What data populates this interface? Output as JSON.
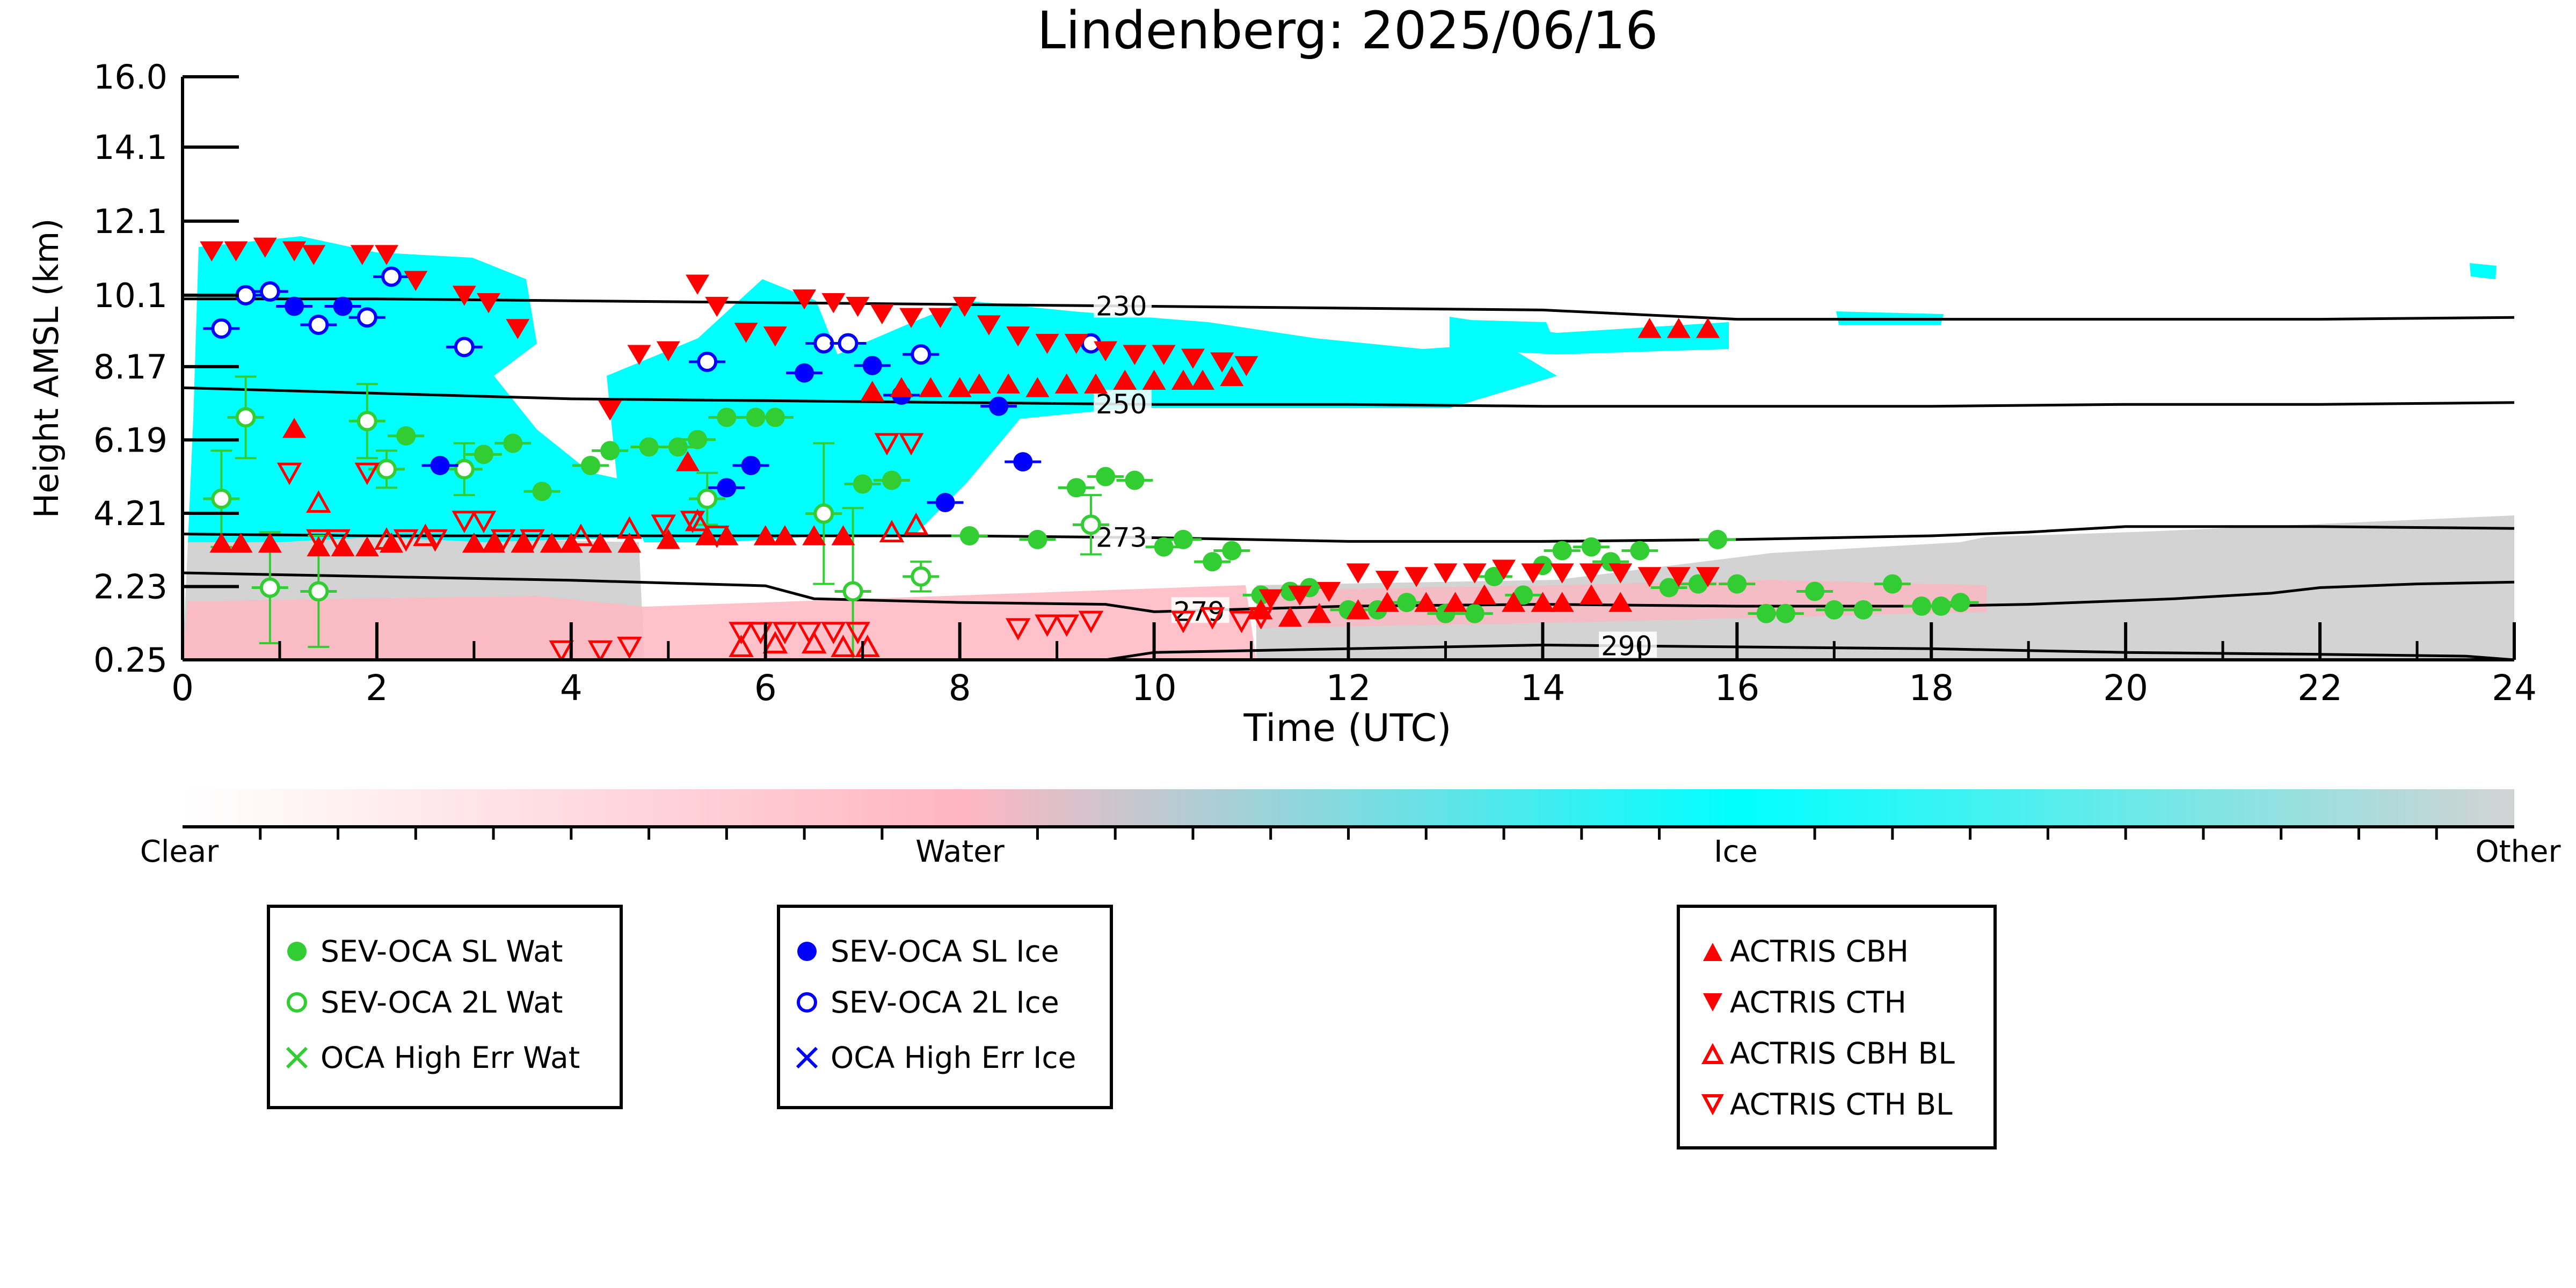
{
  "chart_data": {
    "type": "scatter",
    "title": "Lindenberg: 2025/06/16",
    "xlabel": "Time (UTC)",
    "ylabel": "Height AMSL (km)",
    "xlim": [
      0,
      24
    ],
    "ylim": [
      0.25,
      16.0
    ],
    "x_ticks": [
      "0",
      "2",
      "4",
      "6",
      "8",
      "10",
      "12",
      "14",
      "16",
      "18",
      "20",
      "22",
      "24"
    ],
    "y_ticks": [
      "0.25",
      "2.23",
      "4.21",
      "6.19",
      "8.17",
      "10.1",
      "12.1",
      "14.1",
      "16.0"
    ],
    "y_tick_values": [
      0.25,
      2.23,
      4.21,
      6.19,
      8.17,
      10.1,
      12.1,
      14.1,
      16.0
    ],
    "colorbar": {
      "labels": [
        "Clear",
        "Water",
        "Ice",
        "Other"
      ],
      "colors": [
        "#ffffff",
        "#ffb6c1",
        "#00ffff",
        "#d3d3d3"
      ]
    },
    "legend_groups": [
      {
        "items": [
          {
            "label": "SEV-OCA SL Wat",
            "marker": "filled-circle",
            "color": "#32cd32"
          },
          {
            "label": "SEV-OCA 2L Wat",
            "marker": "open-circle",
            "color": "#32cd32"
          },
          {
            "label": "OCA High Err Wat",
            "marker": "x",
            "color": "#32cd32"
          }
        ]
      },
      {
        "items": [
          {
            "label": "SEV-OCA SL Ice",
            "marker": "filled-circle",
            "color": "#0000ff"
          },
          {
            "label": "SEV-OCA 2L Ice",
            "marker": "open-circle",
            "color": "#0000ff"
          },
          {
            "label": "OCA High Err Ice",
            "marker": "x",
            "color": "#0000ff"
          }
        ]
      },
      {
        "items": [
          {
            "label": "ACTRIS CBH",
            "marker": "triangle-up",
            "color": "#ff0000"
          },
          {
            "label": "ACTRIS CTH",
            "marker": "triangle-down",
            "color": "#ff0000"
          },
          {
            "label": "ACTRIS CBH BL",
            "marker": "open-triangle-up",
            "color": "#ff0000"
          },
          {
            "label": "ACTRIS CTH BL",
            "marker": "open-triangle-down",
            "color": "#ff0000"
          }
        ]
      }
    ],
    "contours": [
      {
        "label": "230",
        "label_x": 9.4,
        "points": [
          [
            0,
            10.0
          ],
          [
            2,
            10.0
          ],
          [
            4,
            9.95
          ],
          [
            6,
            9.9
          ],
          [
            8,
            9.85
          ],
          [
            10,
            9.8
          ],
          [
            12,
            9.75
          ],
          [
            14,
            9.7
          ],
          [
            16,
            9.45
          ],
          [
            18,
            9.45
          ],
          [
            20,
            9.45
          ],
          [
            22,
            9.45
          ],
          [
            24,
            9.5
          ]
        ]
      },
      {
        "label": "250",
        "label_x": 9.4,
        "points": [
          [
            0,
            7.6
          ],
          [
            2,
            7.45
          ],
          [
            4,
            7.3
          ],
          [
            6,
            7.25
          ],
          [
            8,
            7.2
          ],
          [
            10,
            7.15
          ],
          [
            12,
            7.15
          ],
          [
            14,
            7.1
          ],
          [
            16,
            7.1
          ],
          [
            18,
            7.1
          ],
          [
            20,
            7.15
          ],
          [
            22,
            7.15
          ],
          [
            24,
            7.2
          ]
        ]
      },
      {
        "label": "273",
        "label_x": 9.4,
        "points": [
          [
            0,
            3.65
          ],
          [
            2,
            3.6
          ],
          [
            4,
            3.6
          ],
          [
            6,
            3.6
          ],
          [
            8,
            3.6
          ],
          [
            10,
            3.55
          ],
          [
            12,
            3.45
          ],
          [
            14,
            3.45
          ],
          [
            16,
            3.5
          ],
          [
            18,
            3.6
          ],
          [
            19,
            3.7
          ],
          [
            20,
            3.85
          ],
          [
            22,
            3.85
          ],
          [
            24,
            3.8
          ]
        ]
      },
      {
        "label": "279",
        "label_x": 10.2,
        "points": [
          [
            0,
            2.6
          ],
          [
            2,
            2.5
          ],
          [
            4,
            2.4
          ],
          [
            6,
            2.25
          ],
          [
            6.5,
            1.9
          ],
          [
            8,
            1.8
          ],
          [
            9.5,
            1.75
          ],
          [
            10,
            1.55
          ],
          [
            12,
            1.7
          ],
          [
            14,
            1.75
          ],
          [
            16,
            1.7
          ],
          [
            18,
            1.7
          ],
          [
            19,
            1.75
          ],
          [
            20,
            1.85
          ],
          [
            20.5,
            1.9
          ],
          [
            21.5,
            2.05
          ],
          [
            22,
            2.2
          ],
          [
            23,
            2.3
          ],
          [
            24,
            2.35
          ]
        ]
      },
      {
        "label": "290",
        "label_x": 14.6,
        "points": [
          [
            9.5,
            0.25
          ],
          [
            10,
            0.45
          ],
          [
            12,
            0.55
          ],
          [
            14,
            0.65
          ],
          [
            16,
            0.6
          ],
          [
            18,
            0.55
          ],
          [
            20,
            0.45
          ],
          [
            22,
            0.4
          ],
          [
            23.5,
            0.35
          ],
          [
            24,
            0.25
          ]
        ]
      }
    ],
    "series": [
      {
        "name": "SEV-OCA SL Wat",
        "marker": "filled-circle",
        "color": "#32cd32",
        "x": [
          2.3,
          3.1,
          3.4,
          3.7,
          4.2,
          4.4,
          4.8,
          5.1,
          5.3,
          5.6,
          5.9,
          6.1,
          7.0,
          7.3,
          8.1,
          8.8,
          9.2,
          9.5,
          9.8,
          10.1,
          10.3,
          10.6,
          10.8,
          11.1,
          11.4,
          11.6,
          12.0,
          12.3,
          12.6,
          13.0,
          13.3,
          13.5,
          13.8,
          14.0,
          14.2,
          14.5,
          14.7,
          15.0,
          15.3,
          15.6,
          15.8,
          16.0,
          16.3,
          16.5,
          16.8,
          17.0,
          17.3,
          17.6,
          17.9,
          18.1,
          18.3
        ],
        "y": [
          6.3,
          5.8,
          6.1,
          4.8,
          5.5,
          5.9,
          6.0,
          6.0,
          6.2,
          6.8,
          6.8,
          6.8,
          5.0,
          5.1,
          3.6,
          3.5,
          4.9,
          5.2,
          5.1,
          3.3,
          3.5,
          2.9,
          3.2,
          2.0,
          2.1,
          2.2,
          1.6,
          1.6,
          1.8,
          1.5,
          1.5,
          2.5,
          2.0,
          2.8,
          3.2,
          3.3,
          2.9,
          3.2,
          2.2,
          2.3,
          3.5,
          2.3,
          1.5,
          1.5,
          2.1,
          1.6,
          1.6,
          2.3,
          1.7,
          1.7,
          1.8
        ]
      },
      {
        "name": "SEV-OCA 2L Wat",
        "marker": "open-circle",
        "color": "#32cd32",
        "x": [
          0.4,
          0.65,
          0.9,
          1.4,
          1.9,
          2.1,
          2.9,
          5.4,
          6.6,
          6.9,
          7.6,
          9.35
        ],
        "y": [
          4.6,
          6.8,
          2.2,
          2.1,
          6.7,
          5.4,
          5.4,
          4.6,
          4.2,
          2.1,
          2.5,
          3.9
        ],
        "err": [
          2.6,
          2.2,
          3.0,
          3.0,
          2.0,
          1.0,
          1.4,
          1.4,
          3.8,
          4.5,
          0.8,
          1.6
        ]
      },
      {
        "name": "SEV-OCA SL Ice",
        "marker": "filled-circle",
        "color": "#0000ff",
        "x": [
          1.15,
          1.65,
          2.65,
          5.6,
          5.85,
          6.4,
          7.1,
          7.4,
          7.85,
          8.4,
          8.65
        ],
        "y": [
          9.8,
          9.8,
          5.5,
          4.9,
          5.5,
          8.0,
          8.2,
          7.4,
          4.5,
          7.1,
          5.6
        ]
      },
      {
        "name": "SEV-OCA 2L Ice",
        "marker": "open-circle",
        "color": "#0000ff",
        "x": [
          0.4,
          0.65,
          0.9,
          1.4,
          1.9,
          2.15,
          2.9,
          5.4,
          6.6,
          6.85,
          7.6,
          9.35
        ],
        "y": [
          9.2,
          10.1,
          10.2,
          9.3,
          9.5,
          10.6,
          8.7,
          8.3,
          8.8,
          8.8,
          8.5,
          8.8
        ]
      },
      {
        "name": "ACTRIS CBH",
        "marker": "triangle-up",
        "color": "#ff0000",
        "x": [
          0.4,
          0.6,
          0.9,
          1.15,
          1.4,
          1.65,
          1.9,
          2.15,
          3.0,
          3.2,
          3.5,
          3.8,
          4.0,
          4.3,
          4.6,
          5.0,
          5.2,
          5.4,
          5.6,
          6.0,
          6.2,
          6.5,
          6.8,
          7.1,
          7.4,
          7.7,
          8.0,
          8.2,
          8.5,
          8.8,
          9.1,
          9.4,
          9.7,
          10.0,
          10.3,
          10.5,
          10.8,
          11.1,
          11.4,
          11.7,
          12.1,
          12.4,
          12.8,
          13.1,
          13.4,
          13.7,
          14.0,
          14.2,
          14.5,
          14.8,
          15.1,
          15.4,
          15.7
        ],
        "y": [
          3.4,
          3.4,
          3.4,
          6.5,
          3.3,
          3.3,
          3.3,
          3.4,
          3.4,
          3.4,
          3.4,
          3.4,
          3.4,
          3.4,
          3.4,
          3.5,
          5.6,
          3.6,
          3.6,
          3.6,
          3.6,
          3.6,
          3.6,
          7.5,
          7.6,
          7.6,
          7.6,
          7.7,
          7.7,
          7.6,
          7.7,
          7.7,
          7.8,
          7.8,
          7.8,
          7.8,
          7.9,
          1.6,
          1.4,
          1.5,
          1.6,
          1.8,
          1.8,
          1.8,
          2.0,
          1.8,
          1.8,
          1.8,
          2.0,
          1.8,
          9.2,
          9.2,
          9.2
        ]
      },
      {
        "name": "ACTRIS CTH",
        "marker": "triangle-down",
        "color": "#ff0000",
        "x": [
          0.3,
          0.55,
          0.85,
          1.15,
          1.35,
          1.85,
          2.1,
          2.4,
          2.9,
          3.15,
          3.45,
          4.4,
          4.7,
          5.0,
          5.3,
          5.5,
          5.8,
          6.1,
          6.4,
          6.7,
          6.95,
          7.2,
          7.5,
          7.8,
          8.05,
          8.3,
          8.6,
          8.9,
          9.2,
          9.5,
          9.8,
          10.1,
          10.4,
          10.7,
          10.95,
          11.2,
          11.5,
          11.8,
          12.1,
          12.4,
          12.7,
          13.0,
          13.3,
          13.6,
          13.9,
          14.2,
          14.5,
          14.8,
          15.1,
          15.4,
          15.7
        ],
        "y": [
          11.3,
          11.3,
          11.4,
          11.3,
          11.2,
          11.2,
          11.2,
          10.5,
          10.1,
          9.9,
          9.2,
          7.0,
          8.5,
          8.6,
          10.4,
          9.8,
          9.1,
          9.0,
          10.0,
          9.9,
          9.8,
          9.6,
          9.5,
          9.5,
          9.8,
          9.3,
          9.0,
          8.8,
          8.8,
          8.6,
          8.5,
          8.5,
          8.4,
          8.3,
          8.2,
          1.9,
          2.0,
          2.1,
          2.6,
          2.4,
          2.5,
          2.6,
          2.6,
          2.7,
          2.6,
          2.6,
          2.6,
          2.6,
          2.5,
          2.5,
          2.5
        ]
      },
      {
        "name": "ACTRIS CBH BL",
        "marker": "open-triangle-up",
        "color": "#ff0000",
        "x": [
          1.4,
          2.1,
          2.5,
          4.1,
          4.6,
          5.3,
          5.75,
          6.1,
          6.5,
          6.8,
          7.05,
          7.3,
          7.55
        ],
        "y": [
          4.5,
          3.5,
          3.6,
          3.6,
          3.8,
          4.0,
          0.6,
          0.7,
          0.7,
          0.6,
          0.6,
          3.7,
          3.9
        ]
      },
      {
        "name": "ACTRIS CTH BL",
        "marker": "open-triangle-down",
        "color": "#ff0000",
        "x": [
          1.1,
          1.4,
          1.6,
          1.9,
          2.3,
          2.6,
          2.9,
          3.1,
          3.3,
          3.6,
          3.9,
          4.3,
          4.6,
          4.95,
          5.25,
          5.5,
          5.75,
          5.95,
          6.2,
          6.45,
          6.7,
          6.95,
          7.25,
          7.5,
          8.6,
          8.9,
          9.1,
          9.35,
          10.3,
          10.6,
          10.9,
          11.1
        ],
        "y": [
          5.3,
          3.5,
          3.5,
          5.3,
          3.5,
          3.5,
          4.0,
          4.0,
          3.5,
          3.5,
          0.5,
          0.5,
          0.6,
          3.9,
          4.0,
          3.6,
          1.0,
          1.0,
          1.0,
          1.0,
          1.0,
          1.0,
          6.1,
          6.1,
          1.1,
          1.2,
          1.2,
          1.3,
          1.3,
          1.4,
          1.3,
          1.4
        ]
      }
    ]
  }
}
